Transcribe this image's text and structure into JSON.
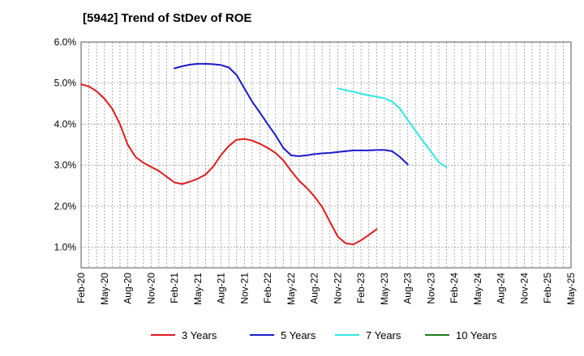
{
  "chart_data": {
    "type": "line",
    "title": "[5942]  Trend of StDev of ROE",
    "xlabel": "",
    "ylabel": "",
    "ylim": [
      0.5,
      6.0
    ],
    "y_ticks": [
      1.0,
      2.0,
      3.0,
      4.0,
      5.0,
      6.0
    ],
    "y_tick_labels": [
      "1.0%",
      "2.0%",
      "3.0%",
      "4.0%",
      "5.0%",
      "6.0%"
    ],
    "x_tick_labels": [
      "Feb-20",
      "May-20",
      "Aug-20",
      "Nov-20",
      "Feb-21",
      "May-21",
      "Aug-21",
      "Nov-21",
      "Feb-22",
      "May-22",
      "Aug-22",
      "Nov-22",
      "Feb-23",
      "May-23",
      "Aug-23",
      "Nov-23",
      "Feb-24",
      "May-24",
      "Aug-24",
      "Nov-24",
      "Feb-25",
      "May-25"
    ],
    "grid": true,
    "legend_position": "bottom",
    "series": [
      {
        "name": "3 Years",
        "color": "#dd1c1c",
        "points": [
          [
            0,
            4.97
          ],
          [
            1,
            4.92
          ],
          [
            2,
            4.8
          ],
          [
            3,
            4.62
          ],
          [
            4,
            4.38
          ],
          [
            5,
            4.0
          ],
          [
            6,
            3.5
          ],
          [
            7,
            3.2
          ],
          [
            8,
            3.06
          ],
          [
            9,
            2.96
          ],
          [
            10,
            2.86
          ],
          [
            11,
            2.72
          ],
          [
            12,
            2.58
          ],
          [
            13,
            2.54
          ],
          [
            14,
            2.6
          ],
          [
            15,
            2.67
          ],
          [
            16,
            2.77
          ],
          [
            17,
            2.97
          ],
          [
            18,
            3.25
          ],
          [
            19,
            3.47
          ],
          [
            20,
            3.62
          ],
          [
            21,
            3.64
          ],
          [
            22,
            3.6
          ],
          [
            23,
            3.52
          ],
          [
            24,
            3.42
          ],
          [
            25,
            3.3
          ],
          [
            26,
            3.12
          ],
          [
            27,
            2.86
          ],
          [
            28,
            2.63
          ],
          [
            29,
            2.45
          ],
          [
            30,
            2.24
          ],
          [
            31,
            1.98
          ],
          [
            32,
            1.62
          ],
          [
            33,
            1.26
          ],
          [
            34,
            1.1
          ],
          [
            35,
            1.07
          ],
          [
            36,
            1.17
          ],
          [
            37,
            1.3
          ],
          [
            38,
            1.44
          ]
        ]
      },
      {
        "name": "5 Years",
        "color": "#1a1acc",
        "points": [
          [
            12,
            5.36
          ],
          [
            13,
            5.41
          ],
          [
            14,
            5.45
          ],
          [
            15,
            5.47
          ],
          [
            16,
            5.47
          ],
          [
            17,
            5.46
          ],
          [
            18,
            5.44
          ],
          [
            19,
            5.38
          ],
          [
            20,
            5.2
          ],
          [
            21,
            4.87
          ],
          [
            22,
            4.55
          ],
          [
            23,
            4.28
          ],
          [
            24,
            4.0
          ],
          [
            25,
            3.73
          ],
          [
            26,
            3.42
          ],
          [
            27,
            3.24
          ],
          [
            28,
            3.22
          ],
          [
            29,
            3.24
          ],
          [
            30,
            3.27
          ],
          [
            31,
            3.29
          ],
          [
            32,
            3.3
          ],
          [
            33,
            3.32
          ],
          [
            34,
            3.34
          ],
          [
            35,
            3.36
          ],
          [
            36,
            3.36
          ],
          [
            37,
            3.36
          ],
          [
            38,
            3.37
          ],
          [
            39,
            3.37
          ],
          [
            40,
            3.34
          ],
          [
            41,
            3.2
          ],
          [
            42,
            3.02
          ]
        ]
      },
      {
        "name": "7 Years",
        "color": "#33e6e6",
        "points": [
          [
            33,
            4.87
          ],
          [
            34,
            4.83
          ],
          [
            35,
            4.79
          ],
          [
            36,
            4.74
          ],
          [
            37,
            4.7
          ],
          [
            38,
            4.67
          ],
          [
            39,
            4.63
          ],
          [
            40,
            4.55
          ],
          [
            41,
            4.38
          ],
          [
            42,
            4.1
          ],
          [
            43,
            3.84
          ],
          [
            44,
            3.58
          ],
          [
            45,
            3.33
          ],
          [
            46,
            3.07
          ],
          [
            47,
            2.95
          ]
        ]
      },
      {
        "name": "10 Years",
        "color": "#1a7f1a",
        "points": []
      }
    ]
  }
}
